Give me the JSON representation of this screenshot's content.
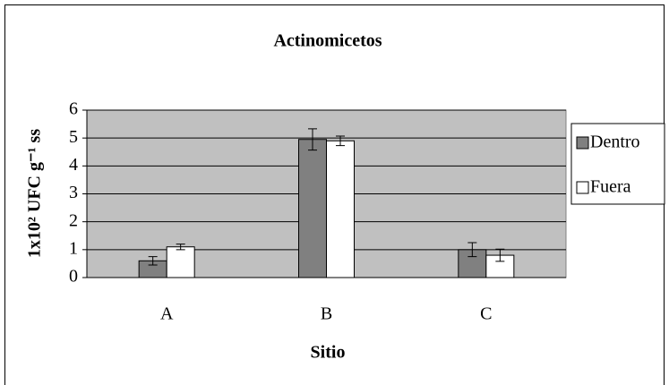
{
  "chart_data": {
    "type": "bar",
    "title": "Actinomicetos",
    "xlabel": "Sitio",
    "ylabel": "1x10² UFC g⁻¹ ss",
    "categories": [
      "A",
      "B",
      "C"
    ],
    "series": [
      {
        "name": "Dentro",
        "color": "#808080",
        "values": [
          0.6,
          4.95,
          1.0
        ],
        "errors": [
          0.15,
          0.38,
          0.25
        ]
      },
      {
        "name": "Fuera",
        "color": "#ffffff",
        "values": [
          1.1,
          4.9,
          0.8
        ],
        "errors": [
          0.1,
          0.17,
          0.22
        ]
      }
    ],
    "ylim": [
      0,
      6
    ],
    "yticks": [
      0,
      1,
      2,
      3,
      4,
      5,
      6
    ],
    "grid": true,
    "legend": "right",
    "plot_background": "#c0c0c0"
  }
}
